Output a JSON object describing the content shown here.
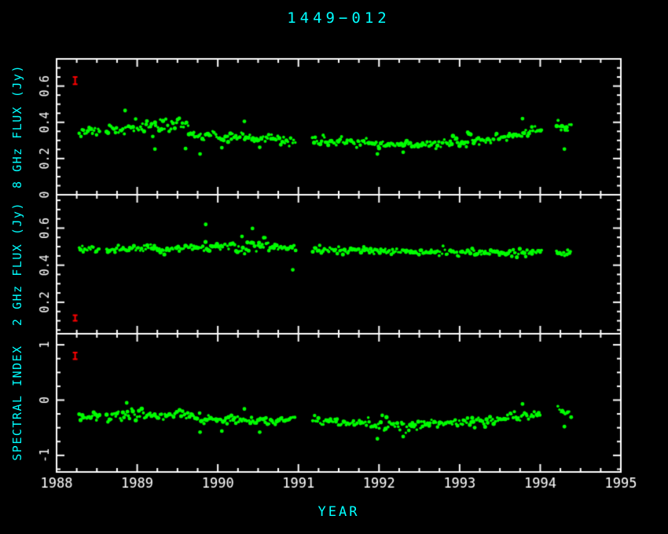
{
  "title": "1449−012",
  "xlabel": "YEAR",
  "colors": {
    "background": "#000000",
    "frame": "#ffffff",
    "tick_text": "#ffffff",
    "label_text": "#00ffff",
    "marker": "#00ff00",
    "errorbar": "#ff0000"
  },
  "axes": {
    "x_min": 1988,
    "x_max": 1995,
    "x_major_ticks": [
      1988,
      1989,
      1990,
      1991,
      1992,
      1993,
      1994,
      1995
    ],
    "x_tick_labels": [
      "1988",
      "1989",
      "1990",
      "1991",
      "1992",
      "1993",
      "1994",
      "1995"
    ],
    "x_minor_step": 0.25
  },
  "chart_data": [
    {
      "type": "scatter",
      "panel": "8ghz-flux",
      "ylabel": "8 GHz FLUX (Jy)",
      "ylim": [
        0,
        0.75
      ],
      "yticks": [
        0,
        0.2,
        0.4,
        0.6
      ],
      "ytick_labels": [
        "0",
        "0.2",
        "0.4",
        "0.6"
      ],
      "y_minor_step": 0.05,
      "x_start": 1988.28,
      "x_end": 1994.38,
      "n_points": 340,
      "seed": 11,
      "noise": 0.013,
      "noise_regions": [
        [
          1988.95,
          1989.65,
          0.021
        ]
      ],
      "gaps": [
        [
          1988.54,
          1988.62
        ],
        [
          1990.97,
          1991.17
        ],
        [
          1994.02,
          1994.2
        ]
      ],
      "trend": [
        [
          1988.28,
          0.35
        ],
        [
          1988.55,
          0.352
        ],
        [
          1988.7,
          0.355
        ],
        [
          1989.0,
          0.372
        ],
        [
          1989.2,
          0.382
        ],
        [
          1989.45,
          0.385
        ],
        [
          1989.6,
          0.38
        ],
        [
          1989.68,
          0.33
        ],
        [
          1989.8,
          0.32
        ],
        [
          1990.1,
          0.318
        ],
        [
          1990.4,
          0.315
        ],
        [
          1990.7,
          0.308
        ],
        [
          1990.96,
          0.3
        ],
        [
          1991.18,
          0.302
        ],
        [
          1991.5,
          0.295
        ],
        [
          1991.8,
          0.285
        ],
        [
          1992.1,
          0.275
        ],
        [
          1992.5,
          0.276
        ],
        [
          1992.9,
          0.285
        ],
        [
          1993.2,
          0.295
        ],
        [
          1993.5,
          0.31
        ],
        [
          1993.75,
          0.33
        ],
        [
          1993.95,
          0.355
        ],
        [
          1994.22,
          0.372
        ],
        [
          1994.38,
          0.38
        ]
      ],
      "outliers": [
        [
          1988.85,
          0.465
        ],
        [
          1989.22,
          0.252
        ],
        [
          1989.6,
          0.255
        ],
        [
          1989.78,
          0.225
        ],
        [
          1990.05,
          0.26
        ],
        [
          1990.33,
          0.405
        ],
        [
          1990.52,
          0.262
        ],
        [
          1991.98,
          0.225
        ],
        [
          1992.3,
          0.235
        ],
        [
          1993.1,
          0.345
        ],
        [
          1993.78,
          0.42
        ],
        [
          1994.3,
          0.252
        ]
      ],
      "errorbar": {
        "x": 1988.23,
        "y": 0.63,
        "err": 0.02
      }
    },
    {
      "type": "scatter",
      "panel": "2ghz-flux",
      "ylabel": "2 GHz FLUX (Jy)",
      "ylim": [
        0.03,
        0.78
      ],
      "yticks": [
        0.2,
        0.4,
        0.6
      ],
      "ytick_labels": [
        "0.2",
        "0.4",
        "0.6"
      ],
      "y_minor_step": 0.05,
      "x_start": 1988.28,
      "x_end": 1994.38,
      "n_points": 340,
      "seed": 22,
      "noise": 0.01,
      "noise_regions": [
        [
          1990.22,
          1990.68,
          0.017
        ]
      ],
      "gaps": [
        [
          1988.54,
          1988.62
        ],
        [
          1990.97,
          1991.17
        ],
        [
          1994.02,
          1994.2
        ]
      ],
      "trend": [
        [
          1988.28,
          0.49
        ],
        [
          1989.0,
          0.49
        ],
        [
          1989.5,
          0.492
        ],
        [
          1989.9,
          0.498
        ],
        [
          1990.2,
          0.5
        ],
        [
          1990.5,
          0.505
        ],
        [
          1990.8,
          0.498
        ],
        [
          1990.96,
          0.492
        ],
        [
          1991.18,
          0.482
        ],
        [
          1991.6,
          0.478
        ],
        [
          1992.0,
          0.474
        ],
        [
          1992.5,
          0.472
        ],
        [
          1993.0,
          0.47
        ],
        [
          1993.5,
          0.468
        ],
        [
          1994.0,
          0.465
        ],
        [
          1994.38,
          0.468
        ]
      ],
      "outliers": [
        [
          1989.85,
          0.62
        ],
        [
          1990.3,
          0.555
        ],
        [
          1990.43,
          0.598
        ],
        [
          1990.57,
          0.548
        ],
        [
          1990.93,
          0.375
        ]
      ],
      "errorbar": {
        "x": 1988.23,
        "y": 0.115,
        "err": 0.015
      }
    },
    {
      "type": "scatter",
      "panel": "spectral-index",
      "ylabel": "SPECTRAL INDEX",
      "ylim": [
        -1.3,
        1.2
      ],
      "yticks": [
        -1,
        0,
        1
      ],
      "ytick_labels": [
        "-1",
        "0",
        "1"
      ],
      "y_minor_step": 0.25,
      "x_start": 1988.28,
      "x_end": 1994.38,
      "n_points": 340,
      "seed": 33,
      "noise": 0.045,
      "noise_regions": [
        [
          1988.95,
          1989.65,
          0.05
        ],
        [
          1991.85,
          1992.45,
          0.055
        ]
      ],
      "gaps": [
        [
          1988.54,
          1988.62
        ],
        [
          1990.97,
          1991.17
        ],
        [
          1994.02,
          1994.2
        ]
      ],
      "trend": [
        [
          1988.28,
          -0.3
        ],
        [
          1988.8,
          -0.285
        ],
        [
          1989.1,
          -0.262
        ],
        [
          1989.4,
          -0.255
        ],
        [
          1989.6,
          -0.262
        ],
        [
          1989.7,
          -0.33
        ],
        [
          1990.0,
          -0.345
        ],
        [
          1990.4,
          -0.355
        ],
        [
          1990.96,
          -0.37
        ],
        [
          1991.18,
          -0.38
        ],
        [
          1991.6,
          -0.42
        ],
        [
          1992.0,
          -0.45
        ],
        [
          1992.4,
          -0.455
        ],
        [
          1992.8,
          -0.43
        ],
        [
          1993.1,
          -0.4
        ],
        [
          1993.4,
          -0.365
        ],
        [
          1993.7,
          -0.31
        ],
        [
          1993.95,
          -0.255
        ],
        [
          1994.22,
          -0.2
        ],
        [
          1994.38,
          -0.185
        ]
      ],
      "outliers": [
        [
          1988.87,
          -0.05
        ],
        [
          1989.78,
          -0.58
        ],
        [
          1990.05,
          -0.56
        ],
        [
          1990.33,
          -0.16
        ],
        [
          1990.52,
          -0.58
        ],
        [
          1991.98,
          -0.7
        ],
        [
          1992.3,
          -0.66
        ],
        [
          1993.78,
          -0.07
        ],
        [
          1994.3,
          -0.48
        ]
      ],
      "errorbar": {
        "x": 1988.23,
        "y": 0.8,
        "err": 0.06
      }
    }
  ]
}
